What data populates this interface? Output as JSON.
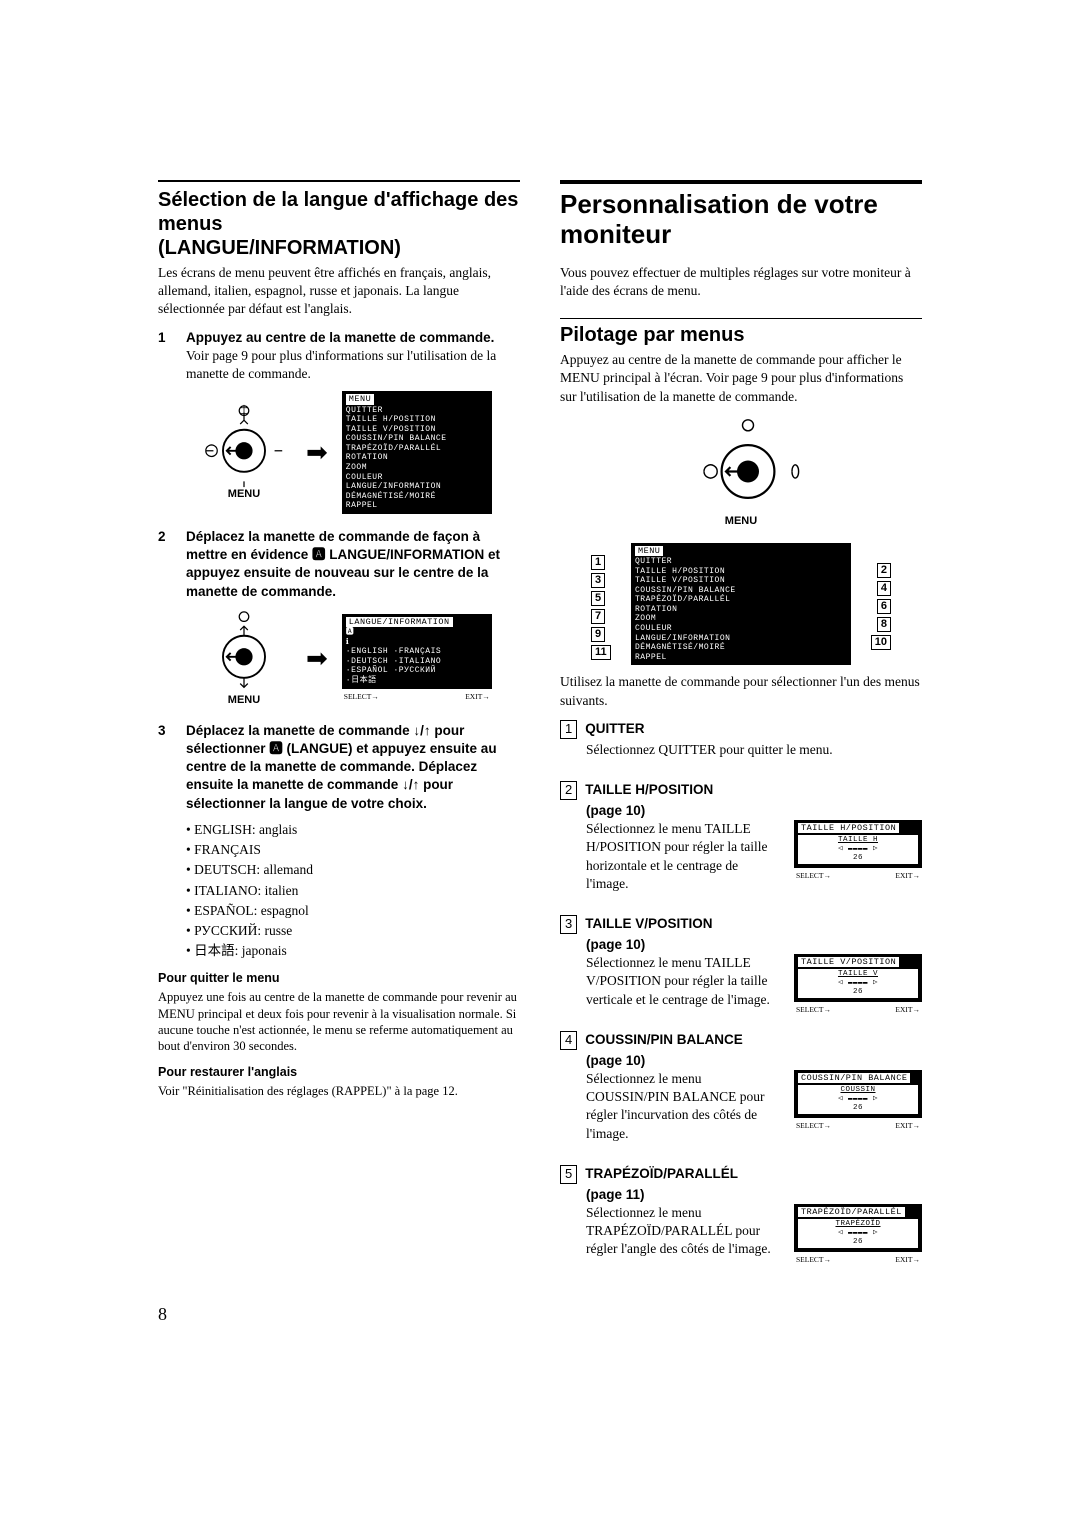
{
  "left": {
    "h2a": "Sélection de la langue d'affichage des menus",
    "h2b": "(LANGUE/INFORMATION)",
    "intro": "Les écrans de menu peuvent être affichés en français, anglais, allemand, italien, espagnol, russe et japonais. La langue sélectionnée par défaut est l'anglais.",
    "step1_bold": "Appuyez au centre de la manette de commande.",
    "step1_normal": "Voir page 9 pour plus d'informations sur l'utilisation de la manette de commande.",
    "step2": "Déplacez la manette de commande de façon à mettre en évidence 🅰 LANGUE/INFORMATION et appuyez ensuite de nouveau sur le centre de la manette de commande.",
    "step3": "Déplacez la manette de commande ↓/↑ pour sélectionner 🅰 (LANGUE) et appuyez ensuite au centre de la manette de commande. Déplacez ensuite la manette de commande ↓/↑ pour sélectionner la langue de votre choix.",
    "langs": [
      "ENGLISH: anglais",
      "FRANÇAIS",
      "DEUTSCH: allemand",
      "ITALIANO: italien",
      "ESPAÑOL: espagnol",
      "РУССКИЙ: russe",
      "日本語: japonais"
    ],
    "quit_head": "Pour quitter le menu",
    "quit_body": "Appuyez une fois au centre de la manette de commande pour revenir au MENU principal et deux fois pour revenir à la visualisation normale. Si aucune touche n'est actionnée, le menu se referme automatiquement au bout d'environ 30 secondes.",
    "restore_head": "Pour restaurer l'anglais",
    "restore_body": "Voir \"Réinitialisation des réglages (RAPPEL)\" à la page 12.",
    "menu_label": "MENU",
    "osd_main_title": "MENU",
    "osd_main_items": [
      "QUITTER",
      "TAILLE H/POSITION",
      "TAILLE V/POSITION",
      "COUSSIN/PIN BALANCE",
      "TRAPÉZOÏD/PARALLÉL",
      "ROTATION",
      "ZOOM",
      "COULEUR",
      "LANGUE/INFORMATION",
      "DÉMAGNÉTISÉ/MOIRÉ",
      "RAPPEL"
    ],
    "osd_lang_title": "LANGUE/INFORMATION",
    "osd_lang_items": [
      "ENGLISH  ·FRANÇAIS",
      "DEUTSCH  ·ITALIANO",
      "ESPAÑOL  ·РУССКИЙ",
      "日本語"
    ],
    "osd_select": "SELECT→",
    "osd_exit": "EXIT→"
  },
  "right": {
    "h1": "Personnalisation de votre moniteur",
    "intro": "Vous pouvez effectuer de multiples réglages sur votre moniteur à l'aide des écrans de menu.",
    "h2": "Pilotage par menus",
    "pilot": "Appuyez au centre de la manette de commande pour afficher le MENU principal à l'écran. Voir page 9 pour plus d'informations sur l'utilisation de la manette de commande.",
    "map_caption": "Utilisez la manette de commande pour sélectionner l'un des menus suivants.",
    "items": [
      {
        "n": "1",
        "title": "QUITTER",
        "body": "Sélectionnez QUITTER pour quitter le menu.",
        "mini": false
      },
      {
        "n": "2",
        "title": "TAILLE H/POSITION",
        "page": "(page 10)",
        "body": "Sélectionnez le menu TAILLE H/POSITION pour régler la taille horizontale et le centrage de l'image.",
        "mini_title": "TAILLE H/POSITION",
        "mini_label": "TAILLE H",
        "mini_val": "26"
      },
      {
        "n": "3",
        "title": "TAILLE V/POSITION",
        "page": "(page 10)",
        "body": "Sélectionnez le menu TAILLE V/POSITION pour régler la taille verticale et le centrage de l'image.",
        "mini_title": "TAILLE V/POSITION",
        "mini_label": "TAILLE V",
        "mini_val": "26"
      },
      {
        "n": "4",
        "title": "COUSSIN/PIN BALANCE",
        "page": "(page 10)",
        "body": "Sélectionnez le menu COUSSIN/PIN BALANCE pour régler l'incurvation des côtés de l'image.",
        "mini_title": "COUSSIN/PIN BALANCE",
        "mini_label": "COUSSIN",
        "mini_val": "26"
      },
      {
        "n": "5",
        "title": "TRAPÉZOÏD/PARALLÉL",
        "page": "(page 11)",
        "body": "Sélectionnez le menu TRAPÉZOÏD/PARALLÉL pour régler l'angle des côtés de l'image.",
        "mini_title": "TRAPÉZOÏD/PARALLÉL",
        "mini_label": "TRAPÉZOÏD",
        "mini_val": "26"
      }
    ]
  },
  "pagenum": "8"
}
